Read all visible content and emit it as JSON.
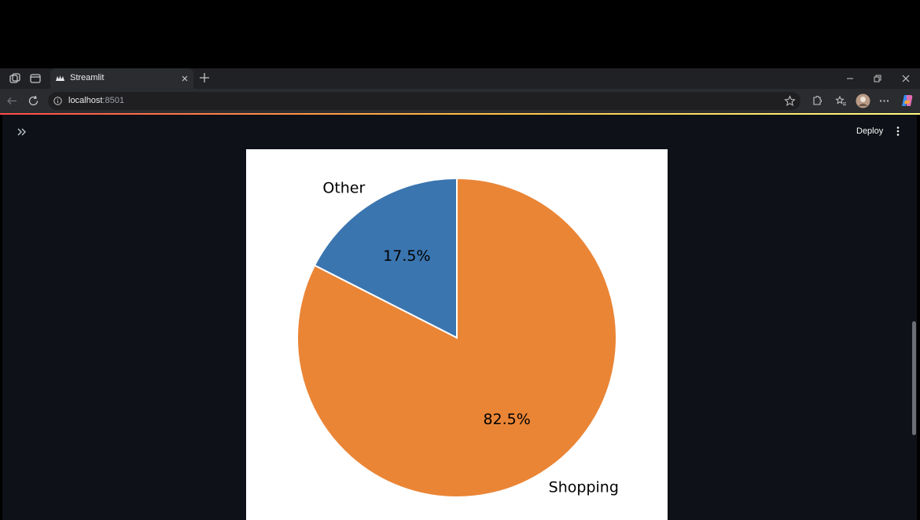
{
  "browser": {
    "tab": {
      "title": "Streamlit"
    },
    "address": {
      "host": "localhost",
      "port": ":8501"
    }
  },
  "app": {
    "deploy_label": "Deploy"
  },
  "colors": {
    "accent": "#ff4b4b",
    "app_background": "#0e1117",
    "shopping": "#ea8536",
    "other": "#3a75af"
  },
  "icons": [
    "sidebar-expand-icon",
    "more-vertical-icon",
    "back-icon",
    "reload-icon",
    "info-icon",
    "star-icon",
    "extensions-icon",
    "favorites-icon",
    "profile-icon",
    "more-horizontal-icon",
    "copilot-icon"
  ],
  "chart_data": {
    "type": "pie",
    "labels": [
      "Other",
      "Shopping"
    ],
    "values": [
      17.5,
      82.5
    ],
    "autopct": [
      "17.5%",
      "82.5%"
    ],
    "colors": [
      "#3a75af",
      "#ea8536"
    ],
    "startangle": 90,
    "title": ""
  }
}
